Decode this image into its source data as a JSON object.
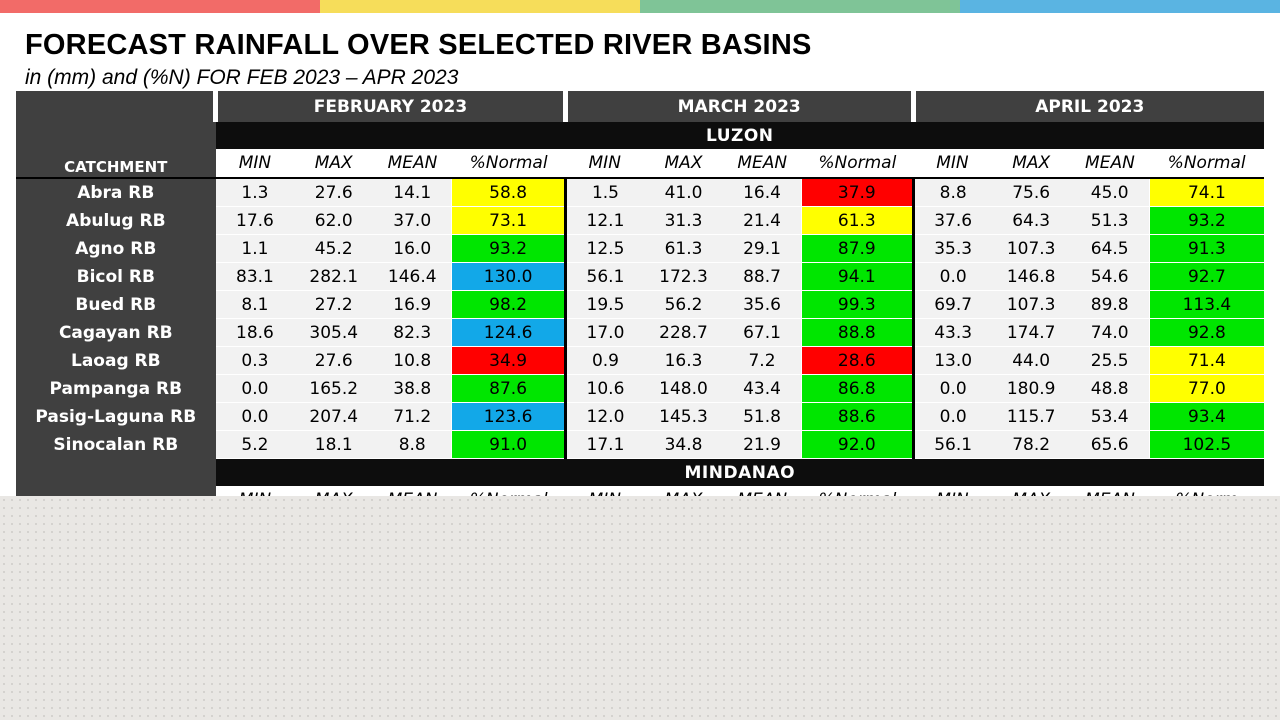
{
  "colors": {
    "bar": [
      "#f26b68",
      "#f6dd5a",
      "#7fc497",
      "#5ab4e2"
    ],
    "pct": {
      "red": "#ff0000",
      "yellow": "#ffff00",
      "green": "#00e600",
      "blue": "#12a8e8"
    }
  },
  "title": "FORECAST RAINFALL OVER SELECTED RIVER BASINS",
  "subtitle": "in (mm) and (%N) FOR FEB 2023 – APR 2023",
  "months": [
    "FEBRUARY 2023",
    "MARCH 2023",
    "APRIL 2023"
  ],
  "catchment_label": "CATCHMENT",
  "col_headers": [
    "MIN",
    "MAX",
    "MEAN",
    "%Normal"
  ],
  "mindanao_col_headers": [
    "MIN",
    "MAX",
    "MEAN",
    "%Normal",
    "MIN",
    "MAX",
    "MEAN",
    "%Normal",
    "MIN",
    "MAX",
    "MEAN",
    "%Norm"
  ],
  "regions": {
    "luzon": "LUZON",
    "mindanao": "MINDANAO"
  },
  "rows": [
    {
      "name": "Abra RB",
      "values": [
        "1.3",
        "27.6",
        "14.1",
        "58.8",
        "1.5",
        "41.0",
        "16.4",
        "37.9",
        "8.8",
        "75.6",
        "45.0",
        "74.1"
      ],
      "colors": [
        "yellow",
        "red",
        "yellow"
      ]
    },
    {
      "name": "Abulug RB",
      "values": [
        "17.6",
        "62.0",
        "37.0",
        "73.1",
        "12.1",
        "31.3",
        "21.4",
        "61.3",
        "37.6",
        "64.3",
        "51.3",
        "93.2"
      ],
      "colors": [
        "yellow",
        "yellow",
        "green"
      ]
    },
    {
      "name": "Agno RB",
      "values": [
        "1.1",
        "45.2",
        "16.0",
        "93.2",
        "12.5",
        "61.3",
        "29.1",
        "87.9",
        "35.3",
        "107.3",
        "64.5",
        "91.3"
      ],
      "colors": [
        "green",
        "green",
        "green"
      ]
    },
    {
      "name": "Bicol RB",
      "values": [
        "83.1",
        "282.1",
        "146.4",
        "130.0",
        "56.1",
        "172.3",
        "88.7",
        "94.1",
        "0.0",
        "146.8",
        "54.6",
        "92.7"
      ],
      "colors": [
        "blue",
        "green",
        "green"
      ]
    },
    {
      "name": "Bued RB",
      "values": [
        "8.1",
        "27.2",
        "16.9",
        "98.2",
        "19.5",
        "56.2",
        "35.6",
        "99.3",
        "69.7",
        "107.3",
        "89.8",
        "113.4"
      ],
      "colors": [
        "green",
        "green",
        "green"
      ]
    },
    {
      "name": "Cagayan RB",
      "values": [
        "18.6",
        "305.4",
        "82.3",
        "124.6",
        "17.0",
        "228.7",
        "67.1",
        "88.8",
        "43.3",
        "174.7",
        "74.0",
        "92.8"
      ],
      "colors": [
        "blue",
        "green",
        "green"
      ]
    },
    {
      "name": "Laoag RB",
      "values": [
        "0.3",
        "27.6",
        "10.8",
        "34.9",
        "0.9",
        "16.3",
        "7.2",
        "28.6",
        "13.0",
        "44.0",
        "25.5",
        "71.4"
      ],
      "colors": [
        "red",
        "red",
        "yellow"
      ]
    },
    {
      "name": "Pampanga RB",
      "values": [
        "0.0",
        "165.2",
        "38.8",
        "87.6",
        "10.6",
        "148.0",
        "43.4",
        "86.8",
        "0.0",
        "180.9",
        "48.8",
        "77.0"
      ],
      "colors": [
        "green",
        "green",
        "yellow"
      ]
    },
    {
      "name": "Pasig-Laguna RB",
      "values": [
        "0.0",
        "207.4",
        "71.2",
        "123.6",
        "12.0",
        "145.3",
        "51.8",
        "88.6",
        "0.0",
        "115.7",
        "53.4",
        "93.4"
      ],
      "colors": [
        "blue",
        "green",
        "green"
      ]
    },
    {
      "name": "Sinocalan RB",
      "values": [
        "5.2",
        "18.1",
        "8.8",
        "91.0",
        "17.1",
        "34.8",
        "21.9",
        "92.0",
        "56.1",
        "78.2",
        "65.6",
        "102.5"
      ],
      "colors": [
        "green",
        "green",
        "green"
      ]
    }
  ]
}
